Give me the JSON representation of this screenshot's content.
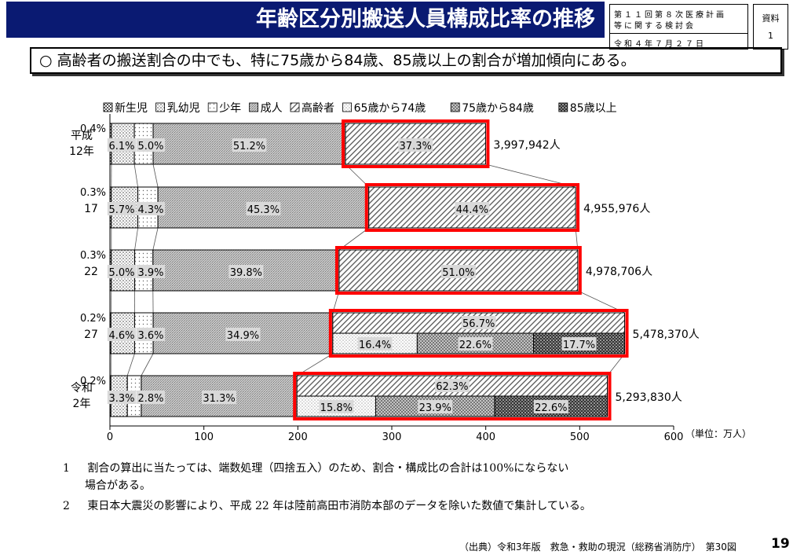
{
  "header": {
    "title": "年齢区分別搬送人員構成比率の推移",
    "meeting_line1": "第１１回第８次医療計画",
    "meeting_line2": "等に関する検討会",
    "meeting_date": "令和４年７月２７日",
    "doc_label": "資料",
    "doc_number": "1"
  },
  "summary": "○ 高齢者の搬送割合の中でも、特に75歳から84歳、85歳以上の割合が増加傾向にある。",
  "chart_data": {
    "type": "bar",
    "orientation": "horizontal-stacked",
    "legend": [
      "新生児",
      "乳幼児",
      "少年",
      "成人",
      "高齢者",
      "65歳から74歳",
      "75歳から84歳",
      "85歳以上"
    ],
    "legend_position": "top",
    "categories": [
      {
        "label": "平成\n12年",
        "total": "3,997,942人",
        "total_value": 399.8
      },
      {
        "label": "17",
        "total": "4,955,976人",
        "total_value": 495.6
      },
      {
        "label": "22",
        "total": "4,978,706人",
        "total_value": 497.9
      },
      {
        "label": "27",
        "total": "5,478,370人",
        "total_value": 547.8
      },
      {
        "label": "令和\n2年",
        "total": "5,293,830人",
        "total_value": 529.4
      }
    ],
    "series": [
      {
        "name": "新生児",
        "labels": [
          "0.4%",
          "0.3%",
          "0.3%",
          "0.2%",
          "0.2%"
        ],
        "values": [
          0.4,
          0.3,
          0.3,
          0.2,
          0.2
        ]
      },
      {
        "name": "乳幼児",
        "labels": [
          "6.1%",
          "5.7%",
          "5.0%",
          "4.6%",
          "3.3%"
        ],
        "values": [
          6.1,
          5.7,
          5.0,
          4.6,
          3.3
        ]
      },
      {
        "name": "少年",
        "labels": [
          "5.0%",
          "4.3%",
          "3.9%",
          "3.6%",
          "2.8%"
        ],
        "values": [
          5.0,
          4.3,
          3.9,
          3.6,
          2.8
        ]
      },
      {
        "name": "成人",
        "labels": [
          "51.2%",
          "45.3%",
          "39.8%",
          "34.9%",
          "31.3%"
        ],
        "values": [
          51.2,
          45.3,
          39.8,
          34.9,
          31.3
        ]
      },
      {
        "name": "高齢者",
        "labels": [
          "37.3%",
          "44.4%",
          "51.0%",
          "56.7%",
          "62.3%"
        ],
        "values": [
          37.3,
          44.4,
          51.0,
          56.7,
          62.3
        ]
      }
    ],
    "elderly_breakdown": [
      {
        "category_index": 3,
        "labels": [
          "16.4%",
          "22.6%",
          "17.7%"
        ],
        "values": [
          16.4,
          22.6,
          17.7
        ]
      },
      {
        "category_index": 4,
        "labels": [
          "15.8%",
          "23.9%",
          "22.6%"
        ],
        "values": [
          15.8,
          23.9,
          22.6
        ]
      }
    ],
    "x_ticks": [
      "0",
      "100",
      "200",
      "300",
      "400",
      "500",
      "600"
    ],
    "xlim": [
      0,
      600
    ],
    "unit_label": "（単位：万人）",
    "highlight_color": "#ff0000"
  },
  "notes": [
    {
      "num": "1",
      "text": "割合の算出に当たっては、端数処理（四捨五入）のため、割合・構成比の合計は100%にならない",
      "text2": "場合がある。"
    },
    {
      "num": "2",
      "text": "東日本大震災の影響により、平成 22 年は陸前高田市消防本部のデータを除いた数値で集計している。"
    }
  ],
  "source": "（出典）令和3年版　救急・救助の現況（総務省消防庁）　第30図",
  "page_number": "19"
}
